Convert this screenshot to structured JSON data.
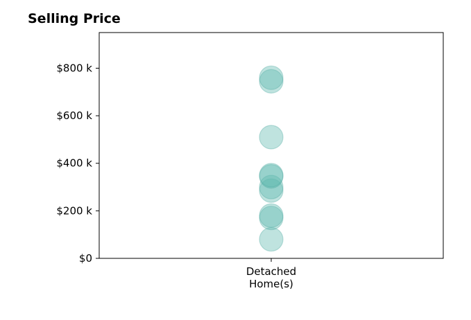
{
  "chart_data": {
    "type": "scatter",
    "title": "Selling Price",
    "xlabel": "",
    "ylabel": "",
    "categories": [
      "Detached\nHome(s)"
    ],
    "category_lines": [
      "Detached",
      "Home(s)"
    ],
    "yticks": [
      0,
      200000,
      400000,
      600000,
      800000
    ],
    "ytick_labels": [
      "$0",
      "$200 k",
      "$400 k",
      "$600 k",
      "$800 k"
    ],
    "ylim": [
      0,
      950000
    ],
    "grid": false,
    "series": [
      {
        "category": "Detached\nHome(s)",
        "values": [
          80000,
          170000,
          180000,
          285000,
          300000,
          345000,
          350000,
          510000,
          745000,
          760000
        ]
      }
    ],
    "marker_color": "#5fb8b0",
    "marker_edge_color": "#4aa79f"
  }
}
